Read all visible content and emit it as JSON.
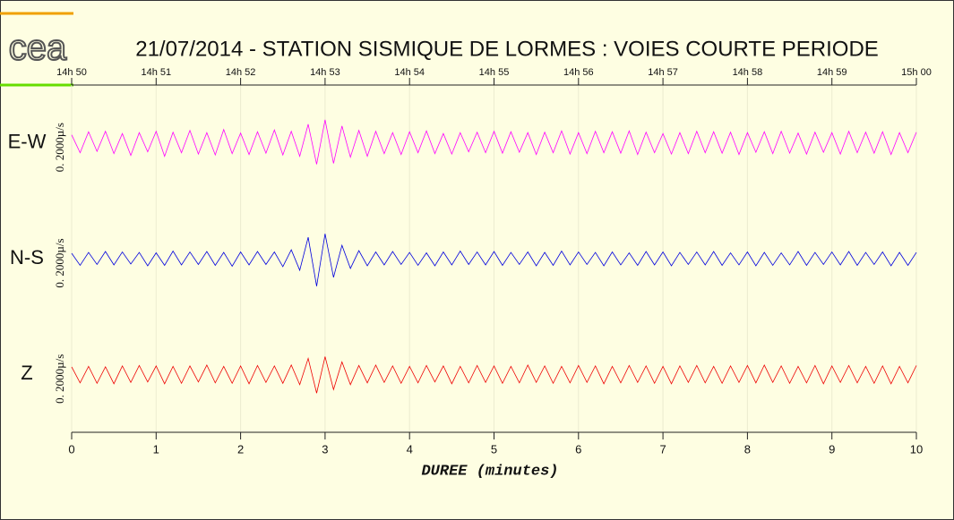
{
  "logo": "cea",
  "chart_data": {
    "type": "seismogram",
    "title": "21/07/2014  -  STATION SISMIQUE DE LORMES : VOIES COURTE PERIODE",
    "xlabel": "DUREE (minutes)",
    "xlim": [
      0,
      10
    ],
    "xticks": [
      0,
      1,
      2,
      3,
      4,
      5,
      6,
      7,
      8,
      9,
      10
    ],
    "top_xticks": [
      {
        "value": 0,
        "label": "14h 50"
      },
      {
        "value": 1,
        "label": "14h 51"
      },
      {
        "value": 2,
        "label": "14h 52"
      },
      {
        "value": 3,
        "label": "14h 53"
      },
      {
        "value": 4,
        "label": "14h 54"
      },
      {
        "value": 5,
        "label": "14h 55"
      },
      {
        "value": 6,
        "label": "14h 56"
      },
      {
        "value": 7,
        "label": "14h 57"
      },
      {
        "value": 8,
        "label": "14h 58"
      },
      {
        "value": 9,
        "label": "14h 59"
      },
      {
        "value": 10,
        "label": "15h 00"
      }
    ],
    "grid": true,
    "ylim": [
      -1300,
      1300
    ],
    "x": [
      0,
      0.1,
      0.2,
      0.3,
      0.4,
      0.5,
      0.6,
      0.7,
      0.8,
      0.9,
      1,
      1.1,
      1.2,
      1.3,
      1.4,
      1.5,
      1.6,
      1.7,
      1.8,
      1.9,
      2,
      2.1,
      2.2,
      2.3,
      2.4,
      2.5,
      2.6,
      2.7,
      2.8,
      2.9,
      3,
      3.1,
      3.2,
      3.3,
      3.4,
      3.5,
      3.6,
      3.7,
      3.8,
      3.9,
      4,
      4.1,
      4.2,
      4.3,
      4.4,
      4.5,
      4.6,
      4.7,
      4.8,
      4.9,
      5,
      5.1,
      5.2,
      5.3,
      5.4,
      5.5,
      5.6,
      5.7,
      5.8,
      5.9,
      6,
      6.1,
      6.2,
      6.3,
      6.4,
      6.5,
      6.6,
      6.7,
      6.8,
      6.9,
      7,
      7.1,
      7.2,
      7.3,
      7.4,
      7.5,
      7.6,
      7.7,
      7.8,
      7.9,
      8,
      8.1,
      8.2,
      8.3,
      8.4,
      8.5,
      8.6,
      8.7,
      8.8,
      8.9,
      9,
      9.1,
      9.2,
      9.3,
      9.4,
      9.5,
      9.6,
      9.7,
      9.8,
      9.9,
      10
    ],
    "series": [
      {
        "name": "E-W",
        "color": "#ff00ff",
        "scale_label": "0. 2000µ/s",
        "values": [
          180,
          -220,
          250,
          -190,
          260,
          -240,
          210,
          -280,
          230,
          -200,
          260,
          -300,
          240,
          -220,
          280,
          -250,
          230,
          -270,
          300,
          -240,
          220,
          -260,
          250,
          -230,
          290,
          -270,
          260,
          -300,
          420,
          -480,
          520,
          -460,
          380,
          -320,
          280,
          -300,
          260,
          -240,
          230,
          -260,
          250,
          -220,
          270,
          -240,
          210,
          -250,
          230,
          -200,
          240,
          -220,
          260,
          -230,
          250,
          -210,
          230,
          -260,
          240,
          -220,
          270,
          -250,
          230,
          -240,
          260,
          -220,
          250,
          -230,
          270,
          -260,
          240,
          -220,
          210,
          -250,
          230,
          -240,
          260,
          -220,
          250,
          -230,
          240,
          -260,
          230,
          -210,
          250,
          -240,
          260,
          -230,
          220,
          -250,
          240,
          -210,
          230,
          -250,
          260,
          -220,
          240,
          -230,
          250,
          -260,
          230,
          -220,
          240
        ]
      },
      {
        "name": "N-S",
        "color": "#0000dd",
        "scale_label": "0. 2000µ/s",
        "values": [
          120,
          -150,
          140,
          -130,
          160,
          -140,
          150,
          -120,
          140,
          -160,
          130,
          -150,
          170,
          -140,
          150,
          -130,
          160,
          -150,
          140,
          -170,
          150,
          -140,
          160,
          -130,
          150,
          -180,
          200,
          -260,
          480,
          -620,
          560,
          -420,
          300,
          -220,
          180,
          -160,
          150,
          -140,
          160,
          -130,
          140,
          -150,
          130,
          -160,
          150,
          -140,
          170,
          -130,
          150,
          -140,
          160,
          -150,
          140,
          -130,
          150,
          -160,
          140,
          -150,
          170,
          -140,
          150,
          -130,
          140,
          -160,
          150,
          -140,
          130,
          -150,
          160,
          -140,
          150,
          -160,
          140,
          -130,
          150,
          -140,
          160,
          -150,
          130,
          -140,
          150,
          -160,
          140,
          -150,
          130,
          -140,
          160,
          -150,
          140,
          -130,
          150,
          -140,
          160,
          -150,
          140,
          -130,
          150,
          -160,
          140,
          -150,
          140
        ]
      },
      {
        "name": "Z",
        "color": "#ee0000",
        "scale_label": "0. 2000µ/s",
        "values": [
          170,
          -190,
          180,
          -200,
          170,
          -210,
          190,
          -180,
          200,
          -170,
          190,
          -210,
          180,
          -200,
          190,
          -170,
          210,
          -190,
          180,
          -200,
          190,
          -210,
          200,
          -180,
          190,
          -200,
          210,
          -230,
          360,
          -420,
          400,
          -340,
          280,
          -230,
          200,
          -190,
          210,
          -180,
          190,
          -200,
          180,
          -190,
          200,
          -170,
          190,
          -210,
          180,
          -190,
          200,
          -180,
          190,
          -200,
          180,
          -190,
          210,
          -180,
          190,
          -200,
          180,
          -190,
          200,
          -180,
          190,
          -210,
          180,
          -190,
          200,
          -180,
          190,
          -200,
          180,
          -210,
          190,
          -180,
          200,
          -190,
          180,
          -200,
          190,
          -180,
          200,
          -190,
          210,
          -180,
          190,
          -200,
          180,
          -190,
          200,
          -210,
          190,
          -180,
          200,
          -190,
          180,
          -200,
          190,
          -210,
          180,
          -190,
          200
        ]
      }
    ]
  }
}
